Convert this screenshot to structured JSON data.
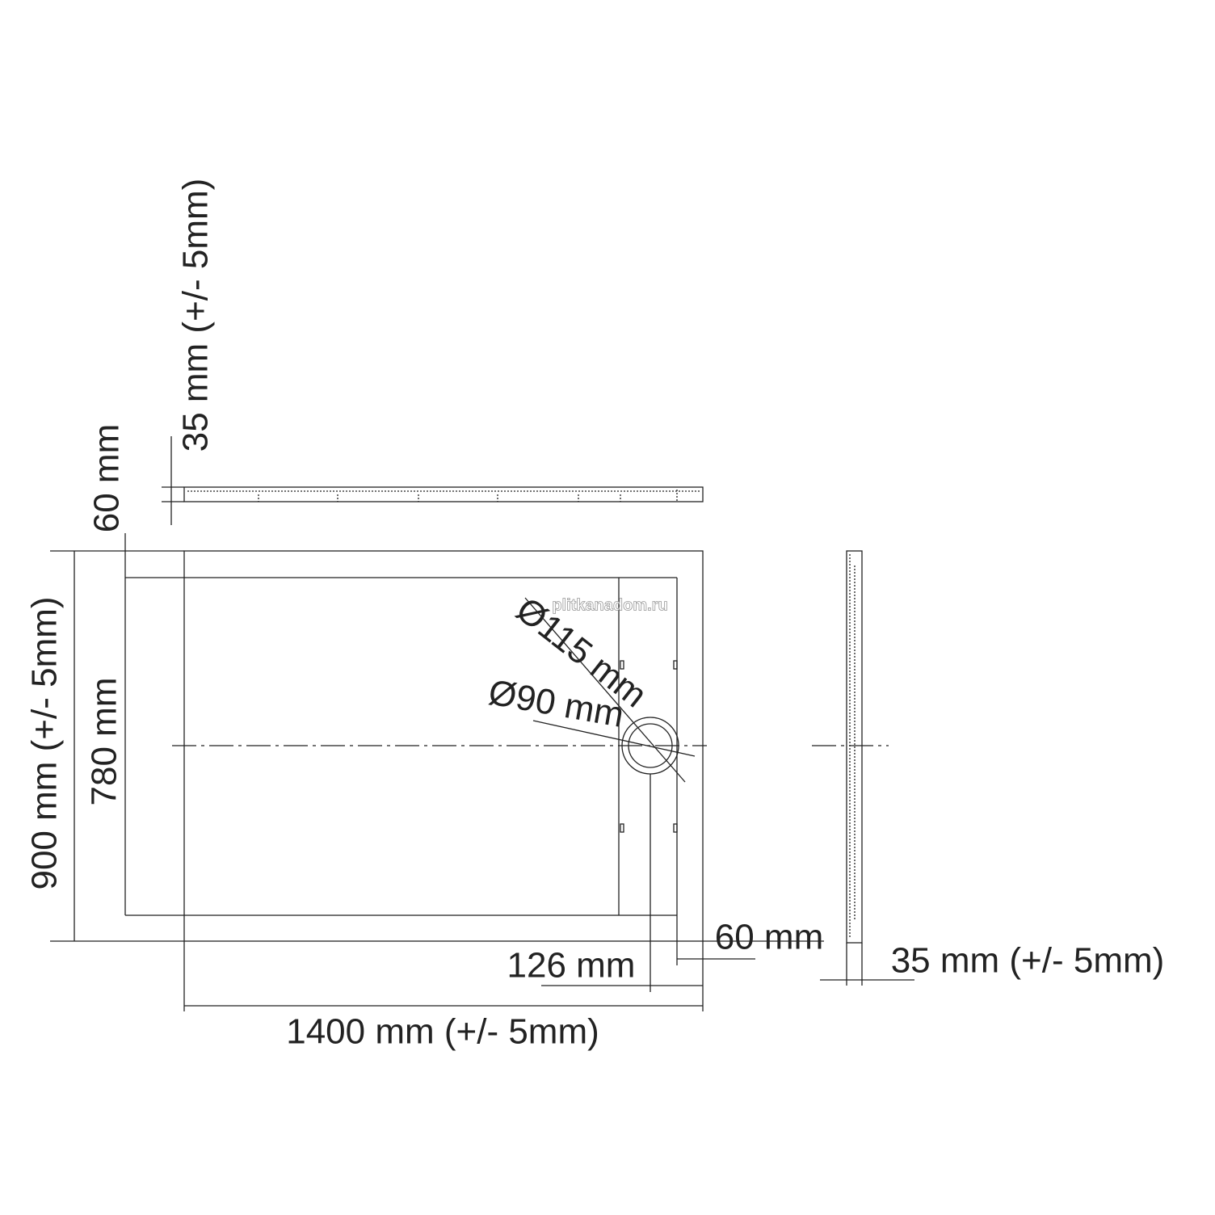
{
  "dimensions": {
    "top_height": "35 mm (+/- 5mm)",
    "top_rim": "60 mm",
    "width": "900 mm (+/- 5mm)",
    "inner_width": "780 mm",
    "outer_diameter": "Ø115 mm",
    "inner_diameter": "Ø90 mm",
    "right_rim": "60 mm",
    "drain_offset": "126 mm",
    "length": "1400 mm (+/- 5mm)",
    "side_height": "35 mm (+/- 5mm)"
  },
  "watermark": "plitkanadom.ru"
}
